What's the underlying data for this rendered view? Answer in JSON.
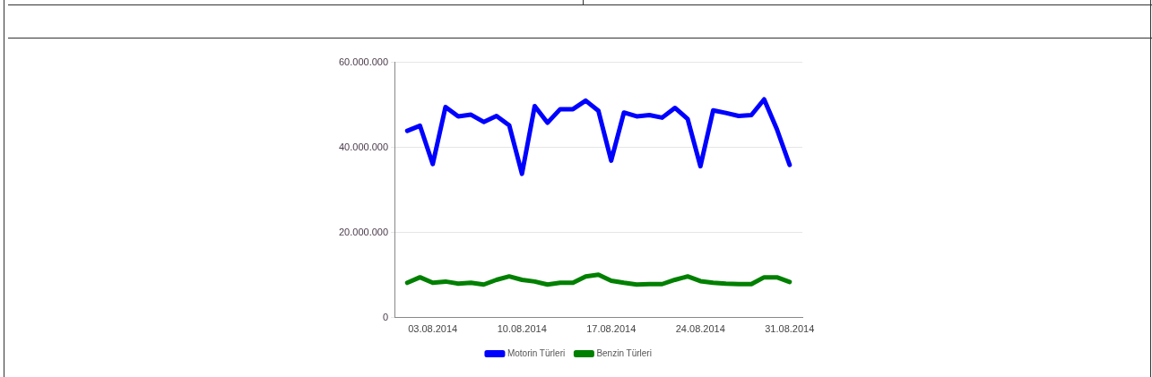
{
  "chart_data": {
    "type": "line",
    "x": [
      "2014-08-01",
      "2014-08-02",
      "2014-08-03",
      "2014-08-04",
      "2014-08-05",
      "2014-08-06",
      "2014-08-07",
      "2014-08-08",
      "2014-08-09",
      "2014-08-10",
      "2014-08-11",
      "2014-08-12",
      "2014-08-13",
      "2014-08-14",
      "2014-08-15",
      "2014-08-16",
      "2014-08-17",
      "2014-08-18",
      "2014-08-19",
      "2014-08-20",
      "2014-08-21",
      "2014-08-22",
      "2014-08-23",
      "2014-08-24",
      "2014-08-25",
      "2014-08-26",
      "2014-08-27",
      "2014-08-28",
      "2014-08-29",
      "2014-08-30",
      "2014-08-31"
    ],
    "series": [
      {
        "name": "Motorin Türleri",
        "color": "#0000ff",
        "values": [
          43900000,
          45100000,
          36100000,
          49500000,
          47300000,
          47700000,
          46000000,
          47400000,
          45200000,
          33800000,
          49700000,
          45800000,
          49000000,
          49000000,
          51000000,
          48600000,
          36900000,
          48200000,
          47300000,
          47600000,
          47000000,
          49300000,
          46700000,
          35600000,
          48700000,
          48100000,
          47400000,
          47600000,
          51300000,
          44300000,
          35900000
        ]
      },
      {
        "name": "Benzin Türleri",
        "color": "#008000",
        "values": [
          8200000,
          9500000,
          8200000,
          8500000,
          8000000,
          8200000,
          7800000,
          8900000,
          9700000,
          8900000,
          8500000,
          7800000,
          8200000,
          8200000,
          9700000,
          10100000,
          8700000,
          8200000,
          7800000,
          7900000,
          7900000,
          8900000,
          9700000,
          8600000,
          8200000,
          8000000,
          7900000,
          7900000,
          9500000,
          9500000,
          8400000
        ]
      }
    ],
    "xlim": [
      "2014-07-31",
      "2014-09-01"
    ],
    "xticks": [
      {
        "value": "2014-08-03",
        "label": "03.08.2014"
      },
      {
        "value": "2014-08-10",
        "label": "10.08.2014"
      },
      {
        "value": "2014-08-17",
        "label": "17.08.2014"
      },
      {
        "value": "2014-08-24",
        "label": "24.08.2014"
      },
      {
        "value": "2014-08-31",
        "label": "31.08.2014"
      }
    ],
    "ylim": [
      0,
      60000000
    ],
    "yticks": [
      {
        "value": 0,
        "label": "0"
      },
      {
        "value": 20000000,
        "label": "20.000.000"
      },
      {
        "value": 40000000,
        "label": "40.000.000"
      },
      {
        "value": 60000000,
        "label": "60.000.000"
      }
    ],
    "grid": "y",
    "legend": "bottom",
    "marker": "none",
    "line_style": "solid"
  }
}
